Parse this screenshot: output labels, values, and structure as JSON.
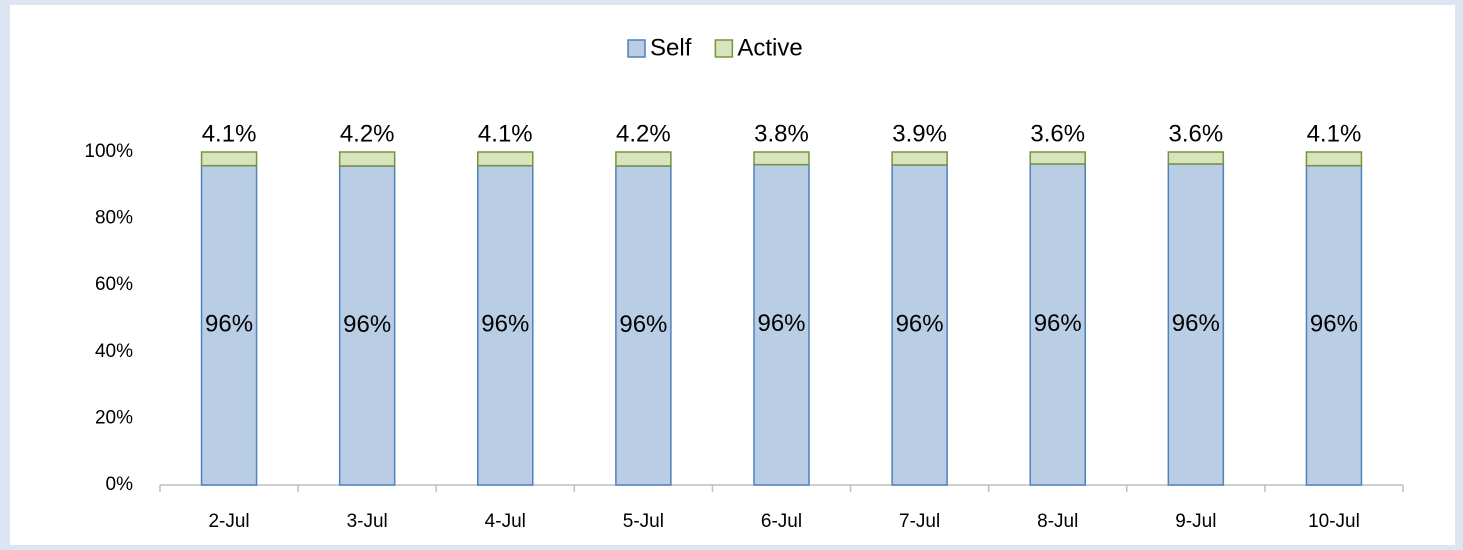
{
  "chart_data": {
    "type": "stacked_bar",
    "categories": [
      "2-Jul",
      "3-Jul",
      "4-Jul",
      "5-Jul",
      "6-Jul",
      "7-Jul",
      "8-Jul",
      "9-Jul",
      "10-Jul"
    ],
    "series": [
      {
        "name": "Self",
        "color": "#b9cde5",
        "edge": "#4f81bd",
        "label_color": "#1f3864",
        "values": [
          95.9,
          95.8,
          95.9,
          95.8,
          96.2,
          96.1,
          96.4,
          96.4,
          95.9
        ],
        "value_labels": [
          "96%",
          "96%",
          "96%",
          "96%",
          "96%",
          "96%",
          "96%",
          "96%",
          "96%"
        ]
      },
      {
        "name": "Active",
        "color": "#d7e4bd",
        "edge": "#77933c",
        "label_color": "#4f6228",
        "values": [
          4.1,
          4.2,
          4.1,
          4.2,
          3.8,
          3.9,
          3.6,
          3.6,
          4.1
        ],
        "value_labels": [
          "4.1%",
          "4.2%",
          "4.1%",
          "4.2%",
          "3.8%",
          "3.9%",
          "3.6%",
          "3.6%",
          "4.1%"
        ]
      }
    ],
    "ylim": [
      0,
      100
    ],
    "yticks": [
      {
        "value": 0,
        "label": "0%"
      },
      {
        "value": 20,
        "label": "20%"
      },
      {
        "value": 40,
        "label": "40%"
      },
      {
        "value": 60,
        "label": "60%"
      },
      {
        "value": 80,
        "label": "80%"
      },
      {
        "value": 100,
        "label": "100%"
      }
    ],
    "legend": "top",
    "grid": false
  }
}
